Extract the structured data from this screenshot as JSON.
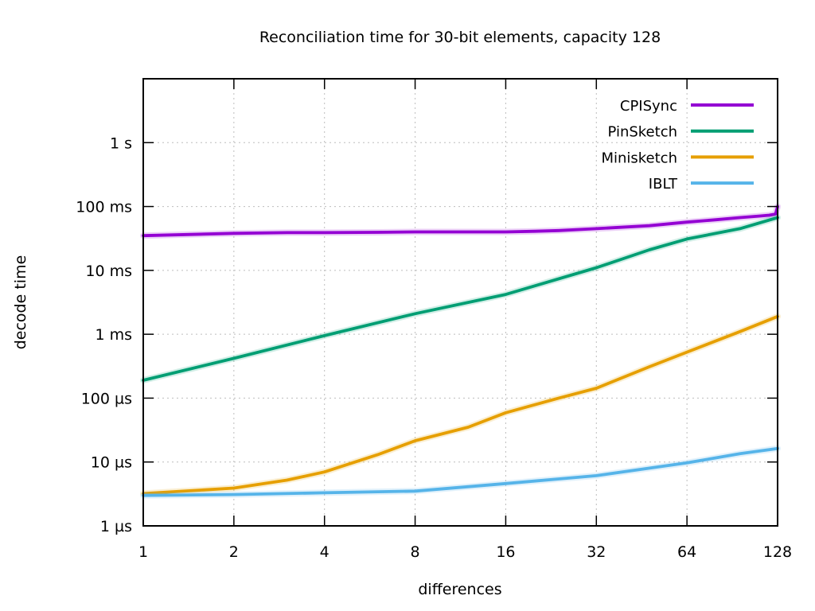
{
  "chart_data": {
    "type": "line",
    "title": "Reconciliation time for 30-bit elements, capacity 128",
    "xlabel": "differences",
    "ylabel": "decode time",
    "x_scale": "log2",
    "y_scale": "log10",
    "grid": "dashed-gray-major",
    "legend_position": "top-right-inside",
    "xlim": [
      1,
      128
    ],
    "ylim_us": [
      1,
      10000000
    ],
    "x_ticks": [
      {
        "v": 1,
        "label": "1"
      },
      {
        "v": 2,
        "label": "2"
      },
      {
        "v": 4,
        "label": "4"
      },
      {
        "v": 8,
        "label": "8"
      },
      {
        "v": 16,
        "label": "16"
      },
      {
        "v": 32,
        "label": "32"
      },
      {
        "v": 64,
        "label": "64"
      },
      {
        "v": 128,
        "label": "128"
      }
    ],
    "y_ticks": [
      {
        "v": 1,
        "label": "1 µs"
      },
      {
        "v": 10,
        "label": "10 µs"
      },
      {
        "v": 100,
        "label": "100 µs"
      },
      {
        "v": 1000,
        "label": "1 ms"
      },
      {
        "v": 10000,
        "label": "10 ms"
      },
      {
        "v": 100000,
        "label": "100 ms"
      },
      {
        "v": 1000000,
        "label": "1 s"
      }
    ],
    "series": [
      {
        "name": "CPISync",
        "color": "#9400d3",
        "x": [
          1,
          2,
          3,
          4,
          6,
          8,
          12,
          16,
          20,
          24,
          32,
          48,
          64,
          80,
          96,
          112,
          120,
          126,
          128
        ],
        "y_us": [
          35000,
          38000,
          39000,
          39000,
          39500,
          40000,
          40000,
          40000,
          41000,
          42000,
          45000,
          50000,
          57000,
          62000,
          67000,
          71000,
          73000,
          76000,
          100000
        ]
      },
      {
        "name": "PinSketch",
        "color": "#009e73",
        "x": [
          1,
          2,
          4,
          8,
          16,
          32,
          48,
          64,
          96,
          128
        ],
        "y_us": [
          190,
          420,
          950,
          2100,
          4200,
          11000,
          21000,
          31000,
          45000,
          67000
        ]
      },
      {
        "name": "Minisketch",
        "color": "#e69f00",
        "x": [
          1,
          2,
          3,
          4,
          6,
          8,
          12,
          16,
          24,
          32,
          48,
          64,
          96,
          128
        ],
        "y_us": [
          3.2,
          3.9,
          5.2,
          7.0,
          13,
          21.5,
          35,
          59,
          100,
          143,
          310,
          525,
          1100,
          1900
        ]
      },
      {
        "name": "IBLT",
        "color": "#56b4e9",
        "x": [
          1,
          2,
          4,
          8,
          16,
          32,
          64,
          96,
          128
        ],
        "y_us": [
          3.0,
          3.1,
          3.3,
          3.5,
          4.6,
          6.1,
          9.7,
          13.5,
          16.3
        ]
      }
    ]
  }
}
